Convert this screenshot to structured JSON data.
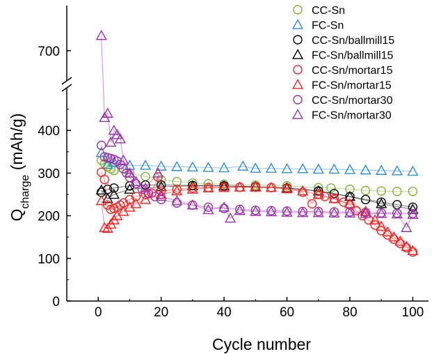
{
  "chart_data": {
    "type": "scatter",
    "title": "",
    "xlabel": "Cycle number",
    "ylabel": {
      "main": "Q",
      "subscript": "charge",
      "unit": " (mAh/g)"
    },
    "xlim": [
      -10,
      105
    ],
    "ylim_lower": [
      0,
      500
    ],
    "ylim_upper": [
      680,
      730
    ],
    "x_ticks": [
      "0",
      "20",
      "40",
      "60",
      "80",
      "100"
    ],
    "y_ticks_lower": [
      "0",
      "100",
      "200",
      "300",
      "400"
    ],
    "y_ticks_upper": [
      "700"
    ],
    "axis_break": "between 500 and 680",
    "grid": false,
    "legend_position": "top-right",
    "series": [
      {
        "name": "CC-Sn",
        "marker": "circle",
        "color": "#7cb82f",
        "points": [
          [
            1,
            330
          ],
          [
            2,
            322
          ],
          [
            3,
            315
          ],
          [
            4,
            310
          ],
          [
            5,
            306
          ],
          [
            10,
            300
          ],
          [
            15,
            292
          ],
          [
            20,
            285
          ],
          [
            25,
            280
          ],
          [
            30,
            277
          ],
          [
            35,
            275
          ],
          [
            40,
            274
          ],
          [
            50,
            272
          ],
          [
            60,
            270
          ],
          [
            70,
            266
          ],
          [
            74,
            265
          ],
          [
            80,
            262
          ],
          [
            85,
            259
          ],
          [
            90,
            258
          ],
          [
            95,
            257
          ],
          [
            100,
            257
          ]
        ]
      },
      {
        "name": "FC-Sn",
        "marker": "triangle",
        "color": "#2a8fd6",
        "points": [
          [
            1,
            348
          ],
          [
            3,
            320
          ],
          [
            5,
            325
          ],
          [
            10,
            318
          ],
          [
            15,
            318
          ],
          [
            20,
            316
          ],
          [
            25,
            315
          ],
          [
            30,
            314
          ],
          [
            35,
            313
          ],
          [
            40,
            312
          ],
          [
            46,
            316
          ],
          [
            50,
            311
          ],
          [
            55,
            311
          ],
          [
            60,
            310
          ],
          [
            65,
            310
          ],
          [
            70,
            309
          ],
          [
            75,
            309
          ],
          [
            80,
            308
          ],
          [
            85,
            307
          ],
          [
            90,
            306
          ],
          [
            95,
            305
          ],
          [
            100,
            304
          ]
        ]
      },
      {
        "name": "CC-Sn/ballmill15",
        "marker": "circle",
        "color": "#000000",
        "points": [
          [
            1,
            255
          ],
          [
            3,
            262
          ],
          [
            5,
            265
          ],
          [
            10,
            270
          ],
          [
            15,
            272
          ],
          [
            20,
            272
          ],
          [
            30,
            271
          ],
          [
            40,
            270
          ],
          [
            50,
            268
          ],
          [
            60,
            265
          ],
          [
            70,
            258
          ],
          [
            75,
            252
          ],
          [
            80,
            245
          ],
          [
            85,
            238
          ],
          [
            90,
            232
          ],
          [
            95,
            226
          ],
          [
            100,
            220
          ]
        ]
      },
      {
        "name": "FC-Sn/ballmill15",
        "marker": "triangle",
        "color": "#000000",
        "points": [
          [
            1,
            260
          ],
          [
            3,
            240
          ],
          [
            5,
            250
          ],
          [
            10,
            262
          ],
          [
            20,
            268
          ],
          [
            30,
            270
          ],
          [
            40,
            270
          ],
          [
            50,
            268
          ],
          [
            60,
            265
          ],
          [
            70,
            258
          ],
          [
            80,
            245
          ],
          [
            90,
            228
          ],
          [
            100,
            215
          ]
        ]
      },
      {
        "name": "CC-Sn/mortar15",
        "marker": "circle",
        "color": "#ff2020",
        "points": [
          [
            1,
            302
          ],
          [
            2,
            285
          ],
          [
            3,
            225
          ],
          [
            4,
            215
          ],
          [
            5,
            217
          ],
          [
            6,
            220
          ],
          [
            7,
            225
          ],
          [
            8,
            230
          ],
          [
            10,
            238
          ],
          [
            12,
            245
          ],
          [
            15,
            250
          ],
          [
            17,
            253
          ],
          [
            19,
            291
          ],
          [
            20,
            258
          ],
          [
            25,
            262
          ],
          [
            30,
            265
          ],
          [
            35,
            266
          ],
          [
            40,
            267
          ],
          [
            45,
            267
          ],
          [
            50,
            267
          ],
          [
            55,
            266
          ],
          [
            60,
            264
          ],
          [
            65,
            255
          ],
          [
            68,
            228
          ],
          [
            70,
            250
          ],
          [
            72,
            245
          ],
          [
            75,
            240
          ],
          [
            78,
            232
          ],
          [
            80,
            225
          ],
          [
            82,
            212
          ],
          [
            84,
            200
          ],
          [
            86,
            190
          ],
          [
            88,
            178
          ],
          [
            90,
            165
          ],
          [
            92,
            155
          ],
          [
            94,
            145
          ],
          [
            96,
            135
          ],
          [
            98,
            125
          ],
          [
            100,
            115
          ]
        ]
      },
      {
        "name": "FC-Sn/mortar15",
        "marker": "triangle",
        "color": "#ff2020",
        "points": [
          [
            1,
            235
          ],
          [
            2,
            172
          ],
          [
            3,
            170
          ],
          [
            4,
            180
          ],
          [
            5,
            190
          ],
          [
            6,
            200
          ],
          [
            8,
            210
          ],
          [
            10,
            220
          ],
          [
            12,
            228
          ],
          [
            15,
            238
          ],
          [
            20,
            250
          ],
          [
            25,
            258
          ],
          [
            30,
            262
          ],
          [
            35,
            265
          ],
          [
            40,
            266
          ],
          [
            45,
            267
          ],
          [
            50,
            267
          ],
          [
            55,
            266
          ],
          [
            60,
            263
          ],
          [
            65,
            258
          ],
          [
            70,
            250
          ],
          [
            75,
            240
          ],
          [
            80,
            228
          ],
          [
            85,
            210
          ],
          [
            88,
            190
          ],
          [
            90,
            175
          ],
          [
            92,
            162
          ],
          [
            94,
            150
          ],
          [
            96,
            140
          ],
          [
            98,
            128
          ],
          [
            100,
            118
          ]
        ]
      },
      {
        "name": "CC-Sn/mortar30",
        "marker": "circle",
        "color": "#9b2fae",
        "points": [
          [
            1,
            365
          ],
          [
            2,
            338
          ],
          [
            3,
            336
          ],
          [
            4,
            334
          ],
          [
            5,
            332
          ],
          [
            6,
            328
          ],
          [
            7,
            320
          ],
          [
            8,
            310
          ],
          [
            9,
            300
          ],
          [
            10,
            290
          ],
          [
            12,
            275
          ],
          [
            14,
            262
          ],
          [
            16,
            252
          ],
          [
            18,
            245
          ],
          [
            20,
            238
          ],
          [
            25,
            230
          ],
          [
            30,
            225
          ],
          [
            35,
            220
          ],
          [
            40,
            217
          ],
          [
            45,
            215
          ],
          [
            50,
            213
          ],
          [
            55,
            212
          ],
          [
            60,
            211
          ],
          [
            65,
            210
          ],
          [
            70,
            210
          ],
          [
            75,
            209
          ],
          [
            80,
            209
          ],
          [
            85,
            208
          ],
          [
            90,
            207
          ],
          [
            95,
            206
          ],
          [
            100,
            205
          ]
        ]
      },
      {
        "name": "FC-Sn/mortar30",
        "marker": "triangle",
        "color": "#9b2fae",
        "points": [
          [
            1,
            710
          ],
          [
            2,
            430
          ],
          [
            3,
            440
          ],
          [
            4,
            372
          ],
          [
            5,
            400
          ],
          [
            6,
            390
          ],
          [
            7,
            380
          ],
          [
            8,
            330
          ],
          [
            10,
            300
          ],
          [
            12,
            280
          ],
          [
            15,
            265
          ],
          [
            19,
            300
          ],
          [
            20,
            245
          ],
          [
            25,
            235
          ],
          [
            30,
            225
          ],
          [
            35,
            214
          ],
          [
            40,
            220
          ],
          [
            42,
            194
          ],
          [
            45,
            212
          ],
          [
            50,
            210
          ],
          [
            55,
            209
          ],
          [
            60,
            208
          ],
          [
            65,
            207
          ],
          [
            70,
            207
          ],
          [
            75,
            206
          ],
          [
            80,
            206
          ],
          [
            85,
            205
          ],
          [
            90,
            205
          ],
          [
            95,
            204
          ],
          [
            98,
            172
          ],
          [
            100,
            203
          ]
        ]
      }
    ]
  }
}
